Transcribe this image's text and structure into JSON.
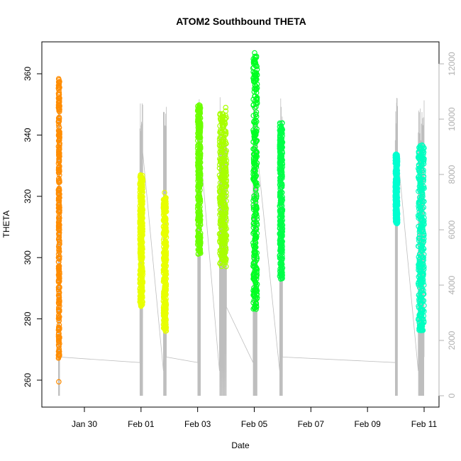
{
  "chart_data": {
    "type": "scatter",
    "title": "ATOM2 Southbound THETA",
    "xlabel": "Date",
    "ylabel": "THETA",
    "ylim": [
      255,
      372
    ],
    "y2lim": [
      -180,
      12400
    ],
    "xlim_days": [
      "Jan 28",
      "Feb 11"
    ],
    "x_ticks": [
      "Jan 30",
      "Feb 01",
      "Feb 03",
      "Feb 05",
      "Feb 07",
      "Feb 09",
      "Feb 11"
    ],
    "y_ticks": [
      "260",
      "280",
      "300",
      "320",
      "340",
      "360"
    ],
    "y2_ticks": [
      "0",
      "2000",
      "4000",
      "6000",
      "8000",
      "10000",
      "12000"
    ],
    "grid": false,
    "colors": {
      "orange": "#ff8c00",
      "yellow": "#e8ff00",
      "yellowgreen": "#a8ff00",
      "lightgreen": "#6cff00",
      "green": "#00ff22",
      "green2": "#00ff48",
      "aqua": "#00ffd0",
      "aqua2": "#00ffc0",
      "altitude_line": "#bebebe"
    },
    "series": [
      {
        "color_key": "orange",
        "x_range": [
          "Jan 29 2:00",
          "Jan 29 3:00"
        ],
        "theta_range": [
          255,
          360
        ],
        "dense_range": [
          267,
          359
        ]
      },
      {
        "color_key": "yellow",
        "x_range": [
          "Jan 31 23:00",
          "Feb 01 1:30"
        ],
        "theta_range": [
          281,
          329
        ],
        "dense_range": [
          284,
          327
        ]
      },
      {
        "color_key": "yellow",
        "x_range": [
          "Feb 01 19:00",
          "Feb 01 21:30"
        ],
        "theta_range": [
          272,
          322
        ],
        "dense_range": [
          276,
          320
        ]
      },
      {
        "color_key": "lightgreen",
        "x_range": [
          "Feb 03 0:00",
          "Feb 03 2:30"
        ],
        "theta_range": [
          300,
          352
        ],
        "dense_range": [
          301,
          350
        ]
      },
      {
        "color_key": "yellowgreen",
        "x_range": [
          "Feb 03 18:30",
          "Feb 04 0:30"
        ],
        "theta_range": [
          295,
          349
        ],
        "dense_range": [
          297,
          348
        ]
      },
      {
        "color_key": "green",
        "x_range": [
          "Feb 04 23:00",
          "Feb 05 2:30"
        ],
        "theta_range": [
          281,
          367
        ],
        "dense_range": [
          283,
          366
        ]
      },
      {
        "color_key": "green2",
        "x_range": [
          "Feb 05 21:30",
          "Feb 06 0:00"
        ],
        "theta_range": [
          292,
          345
        ],
        "dense_range": [
          293,
          344
        ]
      },
      {
        "color_key": "aqua",
        "x_range": [
          "Feb 09 23:30",
          "Feb 10 1:30"
        ],
        "theta_range": [
          310,
          335
        ],
        "dense_range": [
          311,
          334
        ]
      },
      {
        "color_key": "aqua2",
        "x_range": [
          "Feb 10 19:00",
          "Feb 11 0:00"
        ],
        "theta_range": [
          274,
          338
        ],
        "dense_range": [
          276,
          337
        ]
      }
    ]
  }
}
